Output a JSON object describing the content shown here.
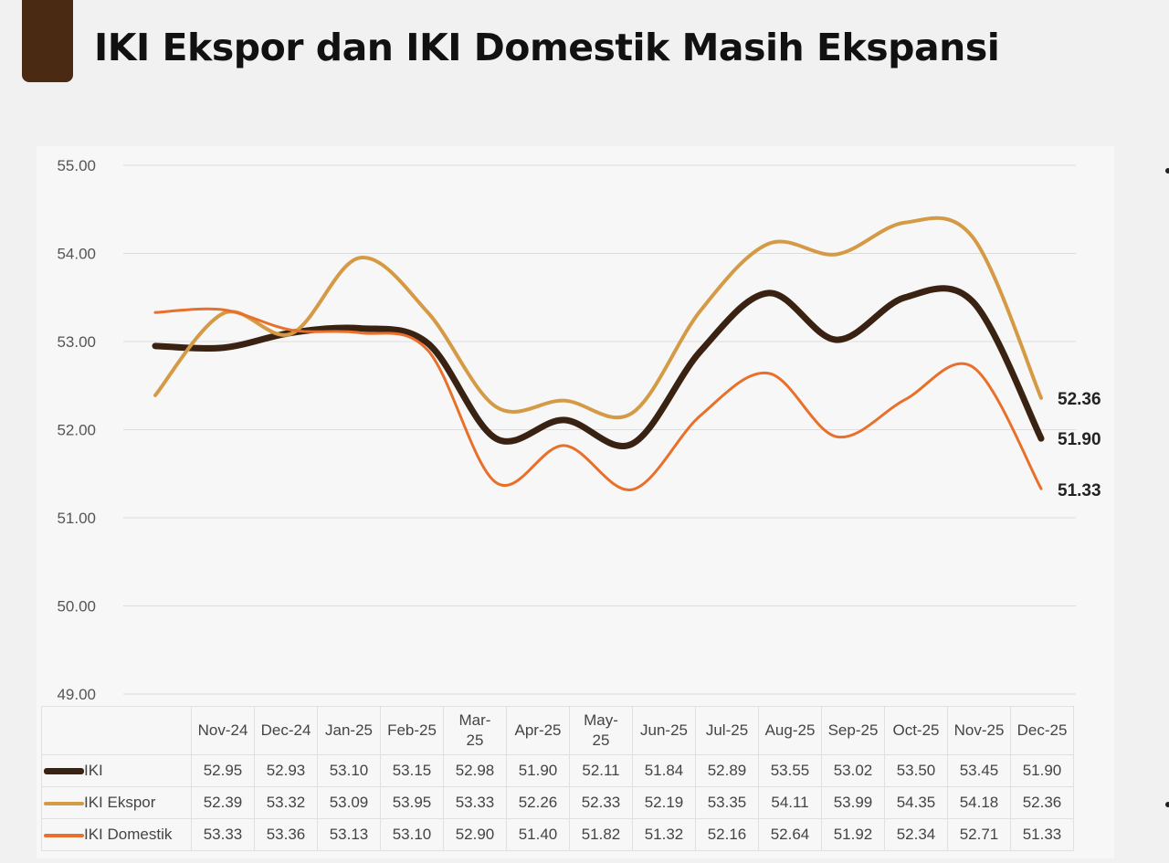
{
  "title": "IKI Ekspor dan IKI Domestik Masih Ekspansi",
  "chart_data": {
    "type": "line",
    "title": "IKI Ekspor dan IKI Domestik Masih Ekspansi",
    "categories": [
      "Nov-24",
      "Dec-24",
      "Jan-25",
      "Feb-25",
      "Mar-25",
      "Apr-25",
      "May-25",
      "Jun-25",
      "Jul-25",
      "Aug-25",
      "Sep-25",
      "Oct-25",
      "Nov-25",
      "Dec-25"
    ],
    "category_labels": [
      [
        "Nov-24"
      ],
      [
        "Dec-24"
      ],
      [
        "Jan-25"
      ],
      [
        "Feb-25"
      ],
      [
        "Mar-",
        "25"
      ],
      [
        "Apr-25"
      ],
      [
        "May-",
        "25"
      ],
      [
        "Jun-25"
      ],
      [
        "Jul-25"
      ],
      [
        "Aug-25"
      ],
      [
        "Sep-25"
      ],
      [
        "Oct-25"
      ],
      [
        "Nov-25"
      ],
      [
        "Dec-25"
      ]
    ],
    "ylim": [
      49,
      55
    ],
    "yticks": [
      "49.00",
      "50.00",
      "51.00",
      "52.00",
      "53.00",
      "54.00",
      "55.00"
    ],
    "grid": true,
    "legend": "bottom-table",
    "series": [
      {
        "name": "IKI",
        "color": "#3a2213",
        "width": 7,
        "values": [
          52.95,
          52.93,
          53.1,
          53.15,
          52.98,
          51.9,
          52.11,
          51.84,
          52.89,
          53.55,
          53.02,
          53.5,
          53.45,
          51.9
        ],
        "display": [
          "52.95",
          "52.93",
          "53.10",
          "53.15",
          "52.98",
          "51.90",
          "52.11",
          "51.84",
          "52.89",
          "53.55",
          "53.02",
          "53.50",
          "53.45",
          "51.90"
        ],
        "end_label": "51.90"
      },
      {
        "name": "IKI Ekspor",
        "color": "#d49a45",
        "width": 4,
        "values": [
          52.39,
          53.32,
          53.09,
          53.95,
          53.33,
          52.26,
          52.33,
          52.19,
          53.35,
          54.11,
          53.99,
          54.35,
          54.18,
          52.36
        ],
        "display": [
          "52.39",
          "53.32",
          "53.09",
          "53.95",
          "53.33",
          "52.26",
          "52.33",
          "52.19",
          "53.35",
          "54.11",
          "53.99",
          "54.35",
          "54.18",
          "52.36"
        ],
        "end_label": "52.36"
      },
      {
        "name": "IKI Domestik",
        "color": "#e8702a",
        "width": 3,
        "values": [
          53.33,
          53.36,
          53.13,
          53.1,
          52.9,
          51.4,
          51.82,
          51.32,
          52.16,
          52.64,
          51.92,
          52.34,
          52.71,
          51.33
        ],
        "display": [
          "53.33",
          "53.36",
          "53.13",
          "53.10",
          "52.90",
          "51.40",
          "51.82",
          "51.32",
          "52.16",
          "52.64",
          "51.92",
          "52.34",
          "52.71",
          "51.33"
        ],
        "end_label": "51.33"
      }
    ]
  }
}
